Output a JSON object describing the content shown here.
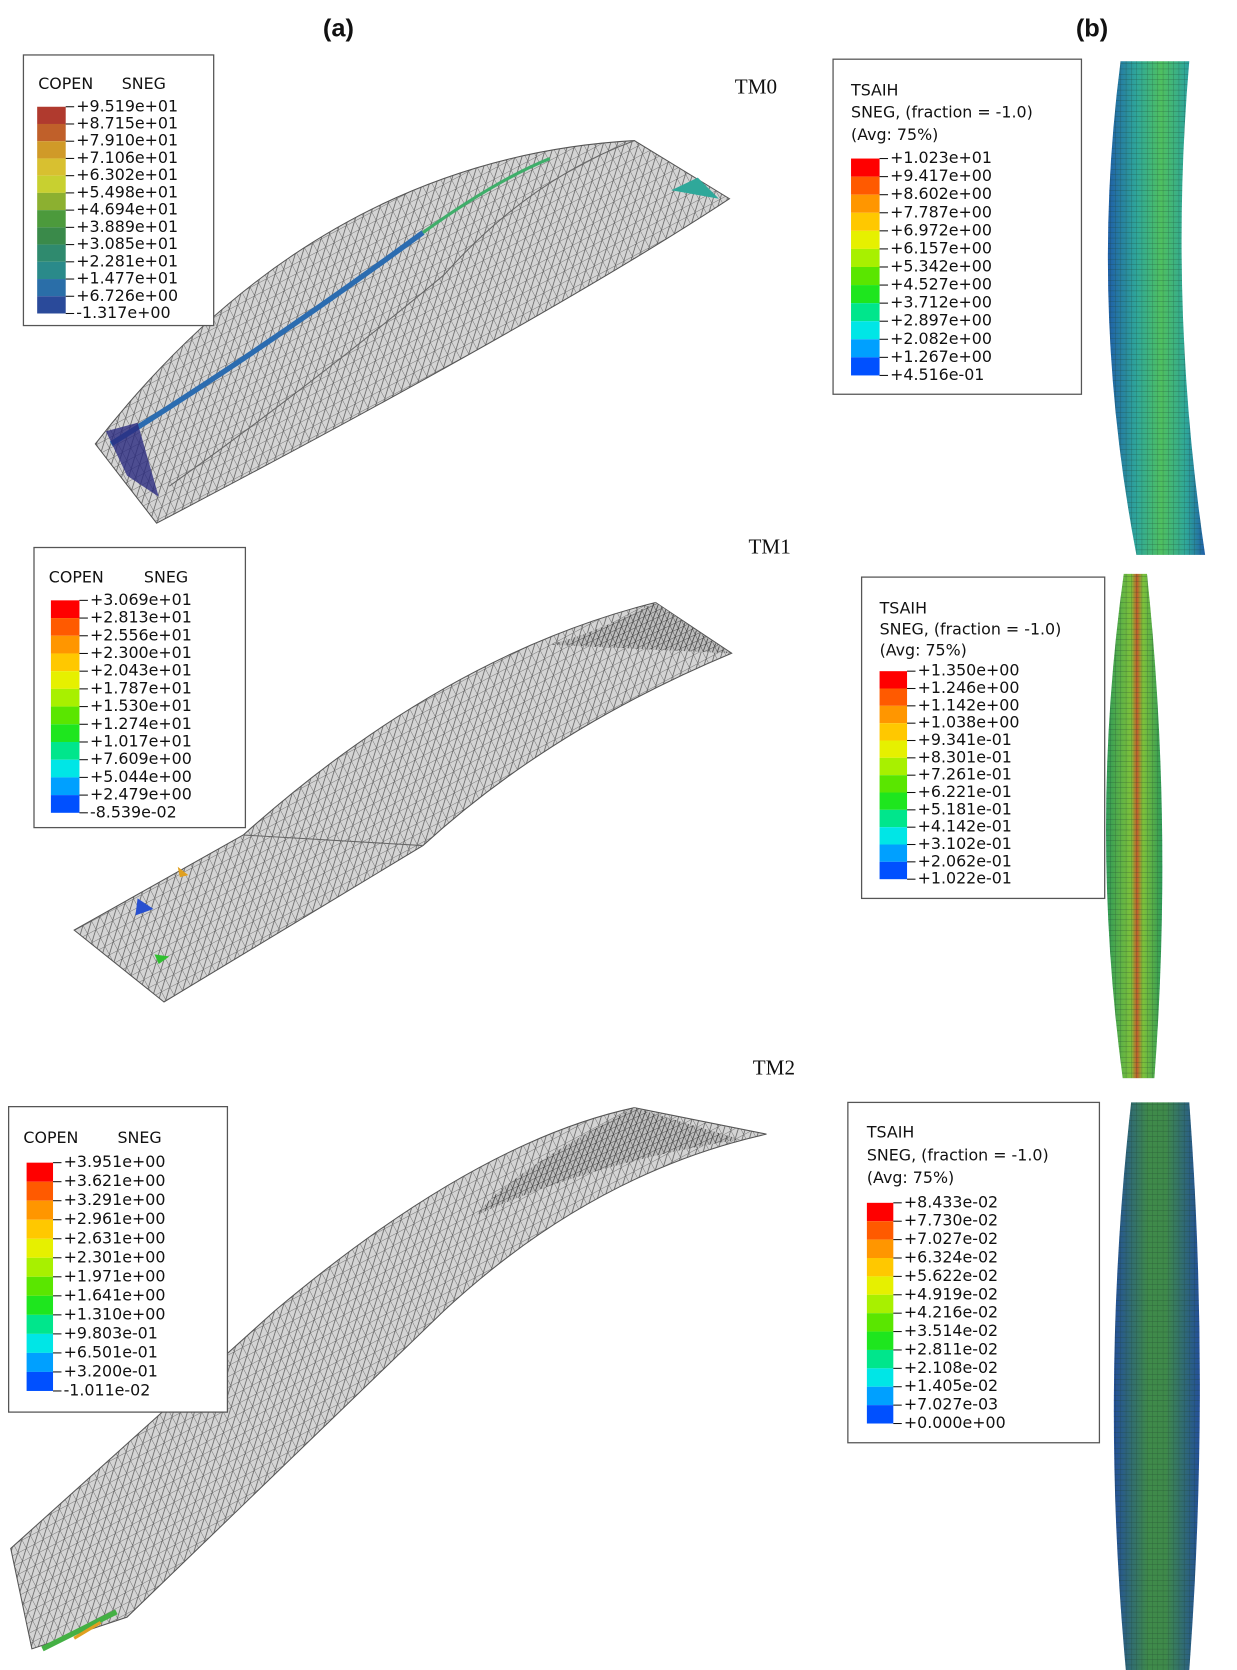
{
  "panels": [
    {
      "label": "(a)"
    },
    {
      "label": "(b)"
    }
  ],
  "rows": [
    {
      "model": "TM0",
      "copen": {
        "title": [
          "COPEN",
          "SNEG"
        ],
        "values": [
          "+9.519e+01",
          "+8.715e+01",
          "+7.910e+01",
          "+7.106e+01",
          "+6.302e+01",
          "+5.498e+01",
          "+4.694e+01",
          "+3.889e+01",
          "+3.085e+01",
          "+2.281e+01",
          "+1.477e+01",
          "+6.726e+00",
          "-1.317e+00"
        ]
      },
      "tsaih": {
        "title": [
          "TSAIH",
          "SNEG, (fraction = -1.0)",
          "(Avg: 75%)"
        ],
        "values": [
          "+1.023e+01",
          "+9.417e+00",
          "+8.602e+00",
          "+7.787e+00",
          "+6.972e+00",
          "+6.157e+00",
          "+5.342e+00",
          "+4.527e+00",
          "+3.712e+00",
          "+2.897e+00",
          "+2.082e+00",
          "+1.267e+00",
          "+4.516e-01"
        ]
      }
    },
    {
      "model": "TM1",
      "copen": {
        "title": [
          "COPEN",
          "SNEG"
        ],
        "values": [
          "+3.069e+01",
          "+2.813e+01",
          "+2.556e+01",
          "+2.300e+01",
          "+2.043e+01",
          "+1.787e+01",
          "+1.530e+01",
          "+1.274e+01",
          "+1.017e+01",
          "+7.609e+00",
          "+5.044e+00",
          "+2.479e+00",
          "-8.539e-02"
        ]
      },
      "tsaih": {
        "title": [
          "TSAIH",
          "SNEG, (fraction = -1.0)",
          "(Avg: 75%)"
        ],
        "values": [
          "+1.350e+00",
          "+1.246e+00",
          "+1.142e+00",
          "+1.038e+00",
          "+9.341e-01",
          "+8.301e-01",
          "+7.261e-01",
          "+6.221e-01",
          "+5.181e-01",
          "+4.142e-01",
          "+3.102e-01",
          "+2.062e-01",
          "+1.022e-01"
        ]
      }
    },
    {
      "model": "TM2",
      "copen": {
        "title": [
          "COPEN",
          "SNEG"
        ],
        "values": [
          "+3.951e+00",
          "+3.621e+00",
          "+3.291e+00",
          "+2.961e+00",
          "+2.631e+00",
          "+2.301e+00",
          "+1.971e+00",
          "+1.641e+00",
          "+1.310e+00",
          "+9.803e-01",
          "+6.501e-01",
          "+3.200e-01",
          "-1.011e-02"
        ]
      },
      "tsaih": {
        "title": [
          "TSAIH",
          "SNEG, (fraction = -1.0)",
          "(Avg: 75%)"
        ],
        "values": [
          "+8.433e-02",
          "+7.730e-02",
          "+7.027e-02",
          "+6.324e-02",
          "+5.622e-02",
          "+4.919e-02",
          "+4.216e-02",
          "+3.514e-02",
          "+2.811e-02",
          "+2.108e-02",
          "+1.405e-02",
          "+7.027e-03",
          "+0.000e+00"
        ]
      }
    }
  ]
}
